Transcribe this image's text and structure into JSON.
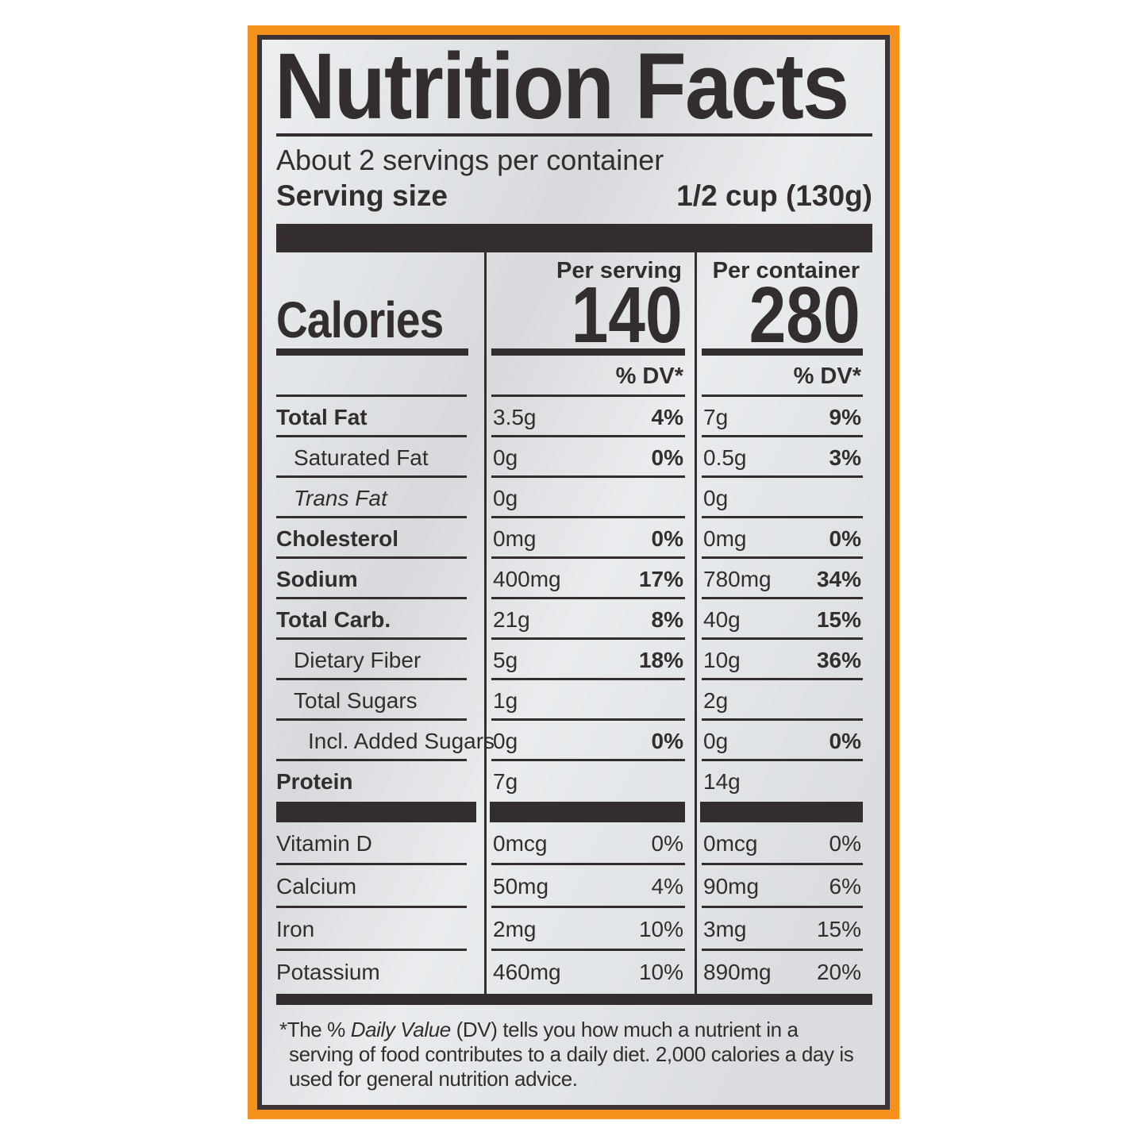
{
  "colors": {
    "package_orange": "#F5921E",
    "label_border": "#3E3435",
    "label_bg": "#E2E5E8",
    "text": "#332D2E"
  },
  "header": {
    "title": "Nutrition Facts",
    "servings_per_container": "About 2 servings per container",
    "serving_size_label": "Serving size",
    "serving_size_value": "1/2 cup (130g)"
  },
  "calories": {
    "label": "Calories",
    "per_serving_header": "Per serving",
    "per_container_header": "Per container",
    "per_serving_value": "140",
    "per_container_value": "280",
    "dv_header_serving": "% DV*",
    "dv_header_container": "% DV*"
  },
  "nutrient_rows": [
    {
      "name": "Total Fat",
      "style": "bold",
      "indent": 0,
      "serving_amount": "3.5g",
      "serving_dv": "4%",
      "container_amount": "7g",
      "container_dv": "9%"
    },
    {
      "name": "Saturated Fat",
      "style": "",
      "indent": 1,
      "serving_amount": "0g",
      "serving_dv": "0%",
      "container_amount": "0.5g",
      "container_dv": "3%"
    },
    {
      "name": "Trans Fat",
      "style": "italic",
      "indent": 1,
      "serving_amount": "0g",
      "serving_dv": "",
      "container_amount": "0g",
      "container_dv": ""
    },
    {
      "name": "Cholesterol",
      "style": "bold",
      "indent": 0,
      "serving_amount": "0mg",
      "serving_dv": "0%",
      "container_amount": "0mg",
      "container_dv": "0%"
    },
    {
      "name": "Sodium",
      "style": "bold",
      "indent": 0,
      "serving_amount": "400mg",
      "serving_dv": "17%",
      "container_amount": "780mg",
      "container_dv": "34%"
    },
    {
      "name": "Total Carb.",
      "style": "bold",
      "indent": 0,
      "serving_amount": "21g",
      "serving_dv": "8%",
      "container_amount": "40g",
      "container_dv": "15%"
    },
    {
      "name": "Dietary Fiber",
      "style": "",
      "indent": 1,
      "serving_amount": "5g",
      "serving_dv": "18%",
      "container_amount": "10g",
      "container_dv": "36%"
    },
    {
      "name": "Total Sugars",
      "style": "",
      "indent": 1,
      "serving_amount": "1g",
      "serving_dv": "",
      "container_amount": "2g",
      "container_dv": ""
    },
    {
      "name": "Incl. Added Sugars",
      "style": "",
      "indent": 2,
      "serving_amount": "0g",
      "serving_dv": "0%",
      "container_amount": "0g",
      "container_dv": "0%"
    },
    {
      "name": "Protein",
      "style": "bold",
      "indent": 0,
      "serving_amount": "7g",
      "serving_dv": "",
      "container_amount": "14g",
      "container_dv": ""
    }
  ],
  "micronutrient_rows": [
    {
      "name": "Vitamin D",
      "style": "",
      "indent": 0,
      "serving_amount": "0mcg",
      "serving_dv": "0%",
      "container_amount": "0mcg",
      "container_dv": "0%"
    },
    {
      "name": "Calcium",
      "style": "",
      "indent": 0,
      "serving_amount": "50mg",
      "serving_dv": "4%",
      "container_amount": "90mg",
      "container_dv": "6%"
    },
    {
      "name": "Iron",
      "style": "",
      "indent": 0,
      "serving_amount": "2mg",
      "serving_dv": "10%",
      "container_amount": "3mg",
      "container_dv": "15%"
    },
    {
      "name": "Potassium",
      "style": "",
      "indent": 0,
      "serving_amount": "460mg",
      "serving_dv": "10%",
      "container_amount": "890mg",
      "container_dv": "20%"
    }
  ],
  "footnote": {
    "prefix": "*The % ",
    "italic_part": "Daily Value",
    "rest": " (DV) tells you how much a nutrient in a serving of food contributes to a daily diet. 2,000 calories a day is used for general nutrition advice."
  }
}
